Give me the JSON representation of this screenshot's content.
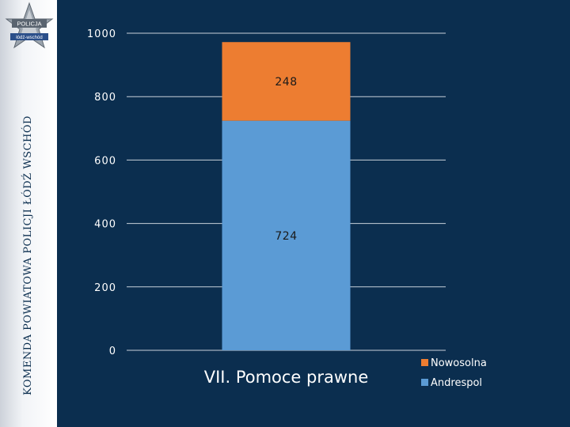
{
  "sidebar": {
    "vertical_text": "KOMENDA POWIATOWA POLICJI ŁÓDŹ WSCHÓD",
    "badge": {
      "icon": "police-star-badge-icon",
      "line1": "POLICJA",
      "line2": "łódź-wschód"
    }
  },
  "chart_data": {
    "type": "bar",
    "stacked": true,
    "categories": [
      "VII. Pomoce prawne"
    ],
    "series": [
      {
        "name": "Andrespol",
        "values": [
          724
        ],
        "color": "#5b9bd5"
      },
      {
        "name": "Nowosolna",
        "values": [
          248
        ],
        "color": "#ed7d31"
      }
    ],
    "title": "",
    "xlabel": "",
    "ylabel": "",
    "ylim": [
      0,
      1000
    ],
    "yticks": [
      "0",
      "200",
      "400",
      "600",
      "800",
      "1000"
    ],
    "grid": true,
    "legend": "right"
  }
}
